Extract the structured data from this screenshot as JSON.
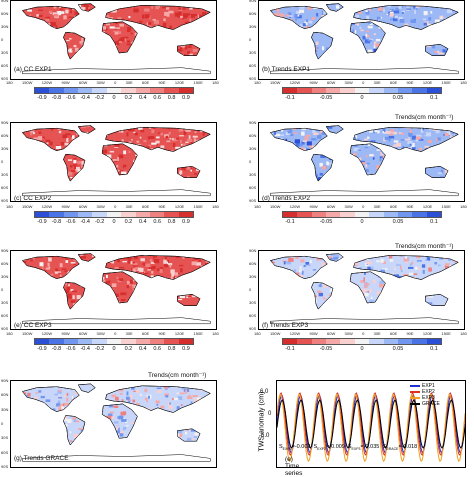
{
  "panels": [
    {
      "id": "a",
      "label": "(a) CC EXP1",
      "kind": "cc"
    },
    {
      "id": "b",
      "label": "(b) Trends EXP1",
      "kind": "trend"
    },
    {
      "id": "c",
      "label": "(c) CC EXP2",
      "kind": "cc"
    },
    {
      "id": "d",
      "label": "(d) Trends EXP2",
      "kind": "trend",
      "title": "Trends(cm month⁻¹)"
    },
    {
      "id": "e",
      "label": "(e) CC EXP3",
      "kind": "cc"
    },
    {
      "id": "f",
      "label": "(f) Trends EXP3",
      "kind": "trend",
      "title": "Trends(cm month⁻¹)"
    },
    {
      "id": "g",
      "label": "(g) Trends GRACE",
      "kind": "trend",
      "title": "Trends(cm month⁻¹)"
    }
  ],
  "lat_labels": [
    "90N",
    "60N",
    "30N",
    "0",
    "30S",
    "60S",
    "90S"
  ],
  "lon_labels": [
    "180",
    "150W",
    "120W",
    "90W",
    "60W",
    "30W",
    "0",
    "30E",
    "60E",
    "90E",
    "120E",
    "150E",
    "180"
  ],
  "cc_colorbar": {
    "ticks": [
      "-0.9",
      "-0.8",
      "-0.6",
      "-0.4",
      "-0.2",
      "0",
      "0.2",
      "0.4",
      "0.6",
      "0.8",
      "0.9"
    ],
    "colors": [
      "#2b4fd6",
      "#4a73e6",
      "#7096ef",
      "#9cb8f5",
      "#c8d6fa",
      "#f2f2f2",
      "#f9d0d0",
      "#f5a8a8",
      "#ef8080",
      "#e55353",
      "#d62d2d"
    ]
  },
  "trend_colorbar": {
    "ticks": [
      "-0.1",
      "-0.05",
      "0",
      "0.05",
      "0.1"
    ],
    "colors": [
      "#d62d2d",
      "#e55353",
      "#ef8080",
      "#f5a8a8",
      "#f9d0d0",
      "#f2f2f2",
      "#c8d6fa",
      "#9cb8f5",
      "#7096ef",
      "#4a73e6",
      "#2b4fd6"
    ]
  },
  "timeseries": {
    "label": "(e) Time series",
    "ylabel": "TWS anomaly (cm)",
    "yticks": [
      "6.0",
      "0",
      "-6.0"
    ],
    "ylim": [
      -9,
      9
    ],
    "legend": [
      {
        "name": "EXP1",
        "color": "#1f2fd0"
      },
      {
        "name": "EXP2",
        "color": "#e03020"
      },
      {
        "name": "EXP3",
        "color": "#f0a020"
      },
      {
        "name": "GRACE",
        "color": "#000000"
      }
    ],
    "annotation": "S",
    "slopes": [
      {
        "sub": "EXP1",
        "value": "=-0.002"
      },
      {
        "sub": "EXP2",
        "value": "=-0.009"
      },
      {
        "sub": "EXP3",
        "value": "=-0.035"
      },
      {
        "sub": "GRACE",
        "value": "=-0.018"
      }
    ]
  }
}
